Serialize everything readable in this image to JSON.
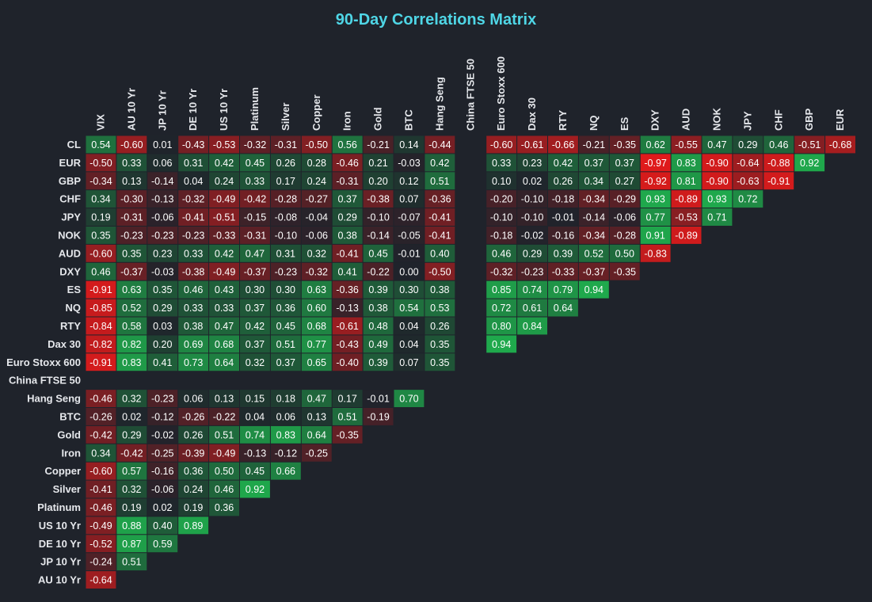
{
  "title": "90-Day Correlations Matrix",
  "colors": {
    "background": "#1f232b",
    "title": "#4fd6e6",
    "positive": "#1fb24e",
    "negative": "#e51a1a",
    "neutral": "#1f232b"
  },
  "chart_data": {
    "type": "heatmap",
    "title": "90-Day Correlations Matrix",
    "columns": [
      "VIX",
      "AU 10 Yr",
      "JP 10 Yr",
      "DE 10 Yr",
      "US 10 Yr",
      "Platinum",
      "Silver",
      "Copper",
      "Iron",
      "Gold",
      "BTC",
      "Hang Seng",
      "China FTSE 50",
      "Euro Stoxx 600",
      "Dax 30",
      "RTY",
      "NQ",
      "ES",
      "DXY",
      "AUD",
      "NOK",
      "JPY",
      "CHF",
      "GBP",
      "EUR"
    ],
    "rows": [
      {
        "label": "CL",
        "values": [
          0.54,
          -0.6,
          0.01,
          -0.43,
          -0.53,
          -0.32,
          -0.31,
          -0.5,
          0.56,
          -0.21,
          0.14,
          -0.44,
          null,
          -0.6,
          -0.61,
          -0.66,
          -0.21,
          -0.35,
          0.62,
          -0.55,
          0.47,
          0.29,
          0.46,
          -0.51,
          -0.68
        ]
      },
      {
        "label": "EUR",
        "values": [
          -0.5,
          0.33,
          0.06,
          0.31,
          0.42,
          0.45,
          0.26,
          0.28,
          -0.46,
          0.21,
          -0.03,
          0.42,
          null,
          0.33,
          0.23,
          0.42,
          0.37,
          0.37,
          -0.97,
          0.83,
          -0.9,
          -0.64,
          -0.88,
          0.92
        ]
      },
      {
        "label": "GBP",
        "values": [
          -0.34,
          0.13,
          -0.14,
          0.04,
          0.24,
          0.33,
          0.17,
          0.24,
          -0.31,
          0.2,
          0.12,
          0.51,
          null,
          0.1,
          0.02,
          0.26,
          0.34,
          0.27,
          -0.92,
          0.81,
          -0.9,
          -0.63,
          -0.91
        ]
      },
      {
        "label": "CHF",
        "values": [
          0.34,
          -0.3,
          -0.13,
          -0.32,
          -0.49,
          -0.42,
          -0.28,
          -0.27,
          0.37,
          -0.38,
          0.07,
          -0.36,
          null,
          -0.2,
          -0.1,
          -0.18,
          -0.34,
          -0.29,
          0.93,
          -0.89,
          0.93,
          0.72
        ]
      },
      {
        "label": "JPY",
        "values": [
          0.19,
          -0.31,
          -0.06,
          -0.41,
          -0.51,
          -0.15,
          -0.08,
          -0.04,
          0.29,
          -0.1,
          -0.07,
          -0.41,
          null,
          -0.1,
          -0.1,
          -0.01,
          -0.14,
          -0.06,
          0.77,
          -0.53,
          0.71
        ]
      },
      {
        "label": "NOK",
        "values": [
          0.35,
          -0.23,
          -0.23,
          -0.23,
          -0.33,
          -0.31,
          -0.1,
          -0.06,
          0.38,
          -0.14,
          -0.05,
          -0.41,
          null,
          -0.18,
          -0.02,
          -0.16,
          -0.34,
          -0.28,
          0.91,
          -0.89
        ]
      },
      {
        "label": "AUD",
        "values": [
          -0.6,
          0.35,
          0.23,
          0.33,
          0.42,
          0.47,
          0.31,
          0.32,
          -0.41,
          0.45,
          -0.01,
          0.4,
          null,
          0.46,
          0.29,
          0.39,
          0.52,
          0.5,
          -0.83
        ]
      },
      {
        "label": "DXY",
        "values": [
          0.46,
          -0.37,
          -0.03,
          -0.38,
          -0.49,
          -0.37,
          -0.23,
          -0.32,
          0.41,
          -0.22,
          0.0,
          -0.5,
          null,
          -0.32,
          -0.23,
          -0.33,
          -0.37,
          -0.35
        ]
      },
      {
        "label": "ES",
        "values": [
          -0.91,
          0.63,
          0.35,
          0.46,
          0.43,
          0.3,
          0.3,
          0.63,
          -0.36,
          0.39,
          0.3,
          0.38,
          null,
          0.85,
          0.74,
          0.79,
          0.94
        ]
      },
      {
        "label": "NQ",
        "values": [
          -0.85,
          0.52,
          0.29,
          0.33,
          0.33,
          0.37,
          0.36,
          0.6,
          -0.13,
          0.38,
          0.54,
          0.53,
          null,
          0.72,
          0.61,
          0.64
        ]
      },
      {
        "label": "RTY",
        "values": [
          -0.84,
          0.58,
          0.03,
          0.38,
          0.47,
          0.42,
          0.45,
          0.68,
          -0.61,
          0.48,
          0.04,
          0.26,
          null,
          0.8,
          0.84
        ]
      },
      {
        "label": "Dax 30",
        "values": [
          -0.82,
          0.82,
          0.2,
          0.69,
          0.68,
          0.37,
          0.51,
          0.77,
          -0.43,
          0.49,
          0.04,
          0.35,
          null,
          0.94
        ]
      },
      {
        "label": "Euro Stoxx 600",
        "values": [
          -0.91,
          0.83,
          0.41,
          0.73,
          0.64,
          0.32,
          0.37,
          0.65,
          -0.4,
          0.39,
          0.07,
          0.35
        ]
      },
      {
        "label": "China FTSE 50",
        "values": []
      },
      {
        "label": "Hang Seng",
        "values": [
          -0.46,
          0.32,
          -0.23,
          0.06,
          0.13,
          0.15,
          0.18,
          0.47,
          0.17,
          -0.01,
          0.7
        ]
      },
      {
        "label": "BTC",
        "values": [
          -0.26,
          0.02,
          -0.12,
          -0.26,
          -0.22,
          0.04,
          0.06,
          0.13,
          0.51,
          -0.19
        ]
      },
      {
        "label": "Gold",
        "values": [
          -0.42,
          0.29,
          -0.02,
          0.26,
          0.51,
          0.74,
          0.83,
          0.64,
          -0.35
        ]
      },
      {
        "label": "Iron",
        "values": [
          0.34,
          -0.42,
          -0.25,
          -0.39,
          -0.49,
          -0.13,
          -0.12,
          -0.25
        ]
      },
      {
        "label": "Copper",
        "values": [
          -0.6,
          0.57,
          -0.16,
          0.36,
          0.5,
          0.45,
          0.66
        ]
      },
      {
        "label": "Silver",
        "values": [
          -0.41,
          0.32,
          -0.06,
          0.24,
          0.46,
          0.92
        ]
      },
      {
        "label": "Platinum",
        "values": [
          -0.46,
          0.19,
          0.02,
          0.19,
          0.36
        ]
      },
      {
        "label": "US 10 Yr",
        "values": [
          -0.49,
          0.88,
          0.4,
          0.89
        ]
      },
      {
        "label": "DE 10 Yr",
        "values": [
          -0.52,
          0.87,
          0.59
        ]
      },
      {
        "label": "JP 10 Yr",
        "values": [
          -0.24,
          0.51
        ]
      },
      {
        "label": "AU 10 Yr",
        "values": [
          -0.64
        ]
      }
    ],
    "value_range": [
      -1,
      1
    ],
    "grid": false
  }
}
